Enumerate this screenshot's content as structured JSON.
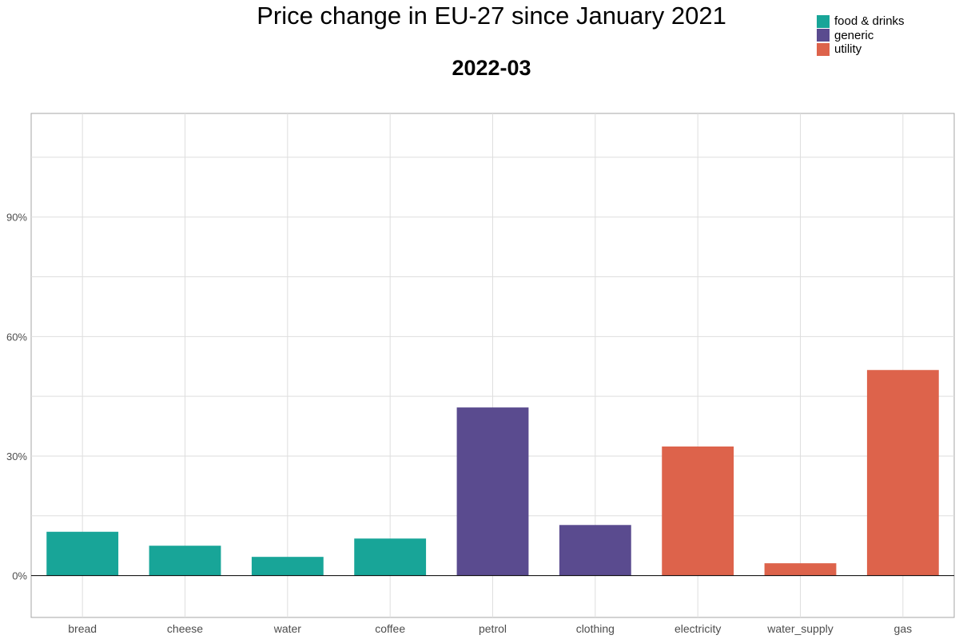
{
  "chart_data": {
    "type": "bar",
    "title": "Price change in EU-27 since January 2021",
    "subtitle": "2022-03",
    "xlabel": "",
    "ylabel": "",
    "categories": [
      "bread",
      "cheese",
      "water",
      "coffee",
      "petrol",
      "clothing",
      "electricity",
      "water_supply",
      "gas"
    ],
    "values": [
      11,
      7.5,
      4.7,
      9.3,
      42.2,
      12.7,
      32.4,
      3.1,
      51.6
    ],
    "groups": [
      "food & drinks",
      "food & drinks",
      "food & drinks",
      "food & drinks",
      "generic",
      "generic",
      "utility",
      "utility",
      "utility"
    ],
    "legend": [
      {
        "label": "food & drinks",
        "color": "#18a598"
      },
      {
        "label": "generic",
        "color": "#5a4b8f"
      },
      {
        "label": "utility",
        "color": "#dd634b"
      }
    ],
    "yticks": [
      0,
      30,
      60,
      90
    ],
    "ytick_labels": [
      "0%",
      "30%",
      "60%",
      "90%"
    ],
    "ylim": [
      -10.5,
      116
    ],
    "grid": true,
    "legend_position": "top-right"
  }
}
